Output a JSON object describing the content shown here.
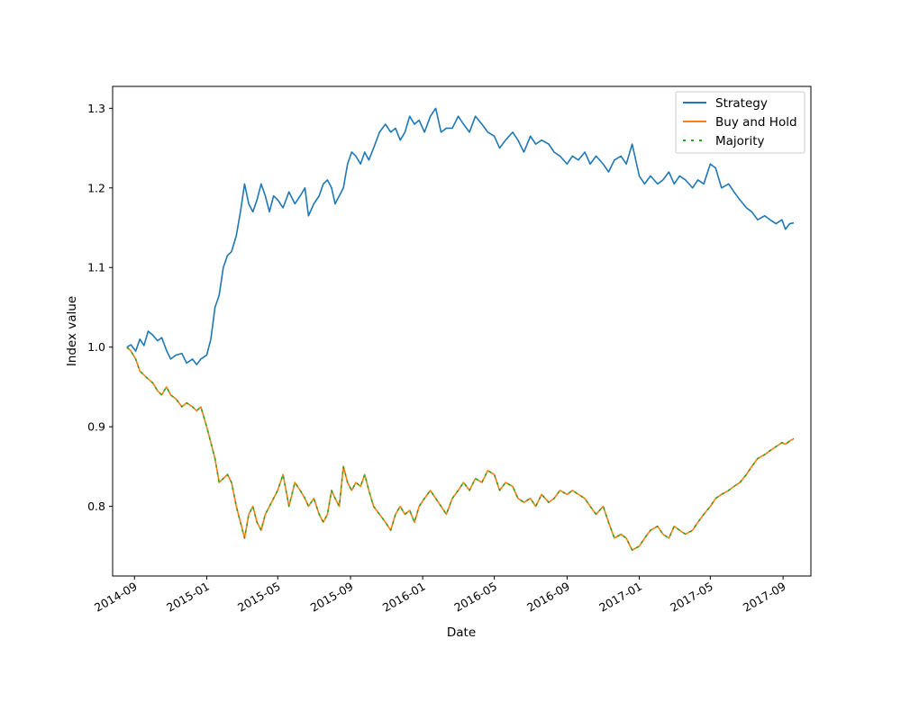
{
  "chart_data": {
    "type": "line",
    "title": "",
    "xlabel": "Date",
    "ylabel": "Index value",
    "x_range": [
      "2014-07-26",
      "2017-10-18"
    ],
    "ylim": [
      0.7125,
      1.3275
    ],
    "yticks": [
      0.8,
      0.9,
      1.0,
      1.1,
      1.2,
      1.3
    ],
    "ytick_labels": [
      "0.8",
      "0.9",
      "1.0",
      "1.1",
      "1.2",
      "1.3"
    ],
    "xticks": [
      "2014-09-01",
      "2015-01-01",
      "2015-05-01",
      "2015-09-01",
      "2016-01-01",
      "2016-05-01",
      "2016-09-01",
      "2017-01-01",
      "2017-05-01",
      "2017-09-01"
    ],
    "xtick_labels": [
      "2014-09",
      "2015-01",
      "2015-05",
      "2015-09",
      "2016-01",
      "2016-05",
      "2016-09",
      "2017-01",
      "2017-05",
      "2017-09"
    ],
    "grid": false,
    "legend_position": "top-right",
    "series": [
      {
        "name": "Strategy",
        "color": "#1f77b4",
        "style": "solid",
        "points": [
          [
            "2014-08-19",
            1.0
          ],
          [
            "2014-08-26",
            1.003
          ],
          [
            "2014-09-03",
            0.995
          ],
          [
            "2014-09-10",
            1.01
          ],
          [
            "2014-09-17",
            1.002
          ],
          [
            "2014-09-24",
            1.02
          ],
          [
            "2014-10-02",
            1.015
          ],
          [
            "2014-10-10",
            1.008
          ],
          [
            "2014-10-17",
            1.012
          ],
          [
            "2014-10-25",
            0.996
          ],
          [
            "2014-11-01",
            0.985
          ],
          [
            "2014-11-10",
            0.99
          ],
          [
            "2014-11-20",
            0.992
          ],
          [
            "2014-11-28",
            0.98
          ],
          [
            "2014-12-08",
            0.985
          ],
          [
            "2014-12-15",
            0.978
          ],
          [
            "2014-12-22",
            0.985
          ],
          [
            "2015-01-01",
            0.99
          ],
          [
            "2015-01-08",
            1.01
          ],
          [
            "2015-01-15",
            1.05
          ],
          [
            "2015-01-22",
            1.065
          ],
          [
            "2015-01-29",
            1.1
          ],
          [
            "2015-02-05",
            1.115
          ],
          [
            "2015-02-12",
            1.12
          ],
          [
            "2015-02-20",
            1.14
          ],
          [
            "2015-02-27",
            1.17
          ],
          [
            "2015-03-06",
            1.205
          ],
          [
            "2015-03-13",
            1.18
          ],
          [
            "2015-03-20",
            1.17
          ],
          [
            "2015-03-27",
            1.185
          ],
          [
            "2015-04-03",
            1.205
          ],
          [
            "2015-04-10",
            1.19
          ],
          [
            "2015-04-17",
            1.17
          ],
          [
            "2015-04-24",
            1.19
          ],
          [
            "2015-05-01",
            1.185
          ],
          [
            "2015-05-10",
            1.175
          ],
          [
            "2015-05-20",
            1.195
          ],
          [
            "2015-05-30",
            1.18
          ],
          [
            "2015-06-08",
            1.19
          ],
          [
            "2015-06-16",
            1.2
          ],
          [
            "2015-06-22",
            1.165
          ],
          [
            "2015-07-01",
            1.18
          ],
          [
            "2015-07-10",
            1.19
          ],
          [
            "2015-07-17",
            1.205
          ],
          [
            "2015-07-24",
            1.21
          ],
          [
            "2015-07-31",
            1.2
          ],
          [
            "2015-08-06",
            1.18
          ],
          [
            "2015-08-13",
            1.19
          ],
          [
            "2015-08-20",
            1.2
          ],
          [
            "2015-08-27",
            1.23
          ],
          [
            "2015-09-03",
            1.245
          ],
          [
            "2015-09-10",
            1.24
          ],
          [
            "2015-09-18",
            1.23
          ],
          [
            "2015-09-25",
            1.245
          ],
          [
            "2015-10-02",
            1.235
          ],
          [
            "2015-10-10",
            1.25
          ],
          [
            "2015-10-20",
            1.27
          ],
          [
            "2015-10-30",
            1.28
          ],
          [
            "2015-11-08",
            1.27
          ],
          [
            "2015-11-16",
            1.275
          ],
          [
            "2015-11-24",
            1.26
          ],
          [
            "2015-12-02",
            1.27
          ],
          [
            "2015-12-10",
            1.29
          ],
          [
            "2015-12-18",
            1.28
          ],
          [
            "2015-12-26",
            1.285
          ],
          [
            "2016-01-04",
            1.27
          ],
          [
            "2016-01-14",
            1.29
          ],
          [
            "2016-01-23",
            1.3
          ],
          [
            "2016-02-01",
            1.27
          ],
          [
            "2016-02-10",
            1.275
          ],
          [
            "2016-02-20",
            1.275
          ],
          [
            "2016-03-01",
            1.29
          ],
          [
            "2016-03-10",
            1.28
          ],
          [
            "2016-03-20",
            1.27
          ],
          [
            "2016-03-30",
            1.29
          ],
          [
            "2016-04-10",
            1.28
          ],
          [
            "2016-04-20",
            1.27
          ],
          [
            "2016-05-01",
            1.265
          ],
          [
            "2016-05-10",
            1.25
          ],
          [
            "2016-05-20",
            1.26
          ],
          [
            "2016-06-01",
            1.27
          ],
          [
            "2016-06-10",
            1.26
          ],
          [
            "2016-06-20",
            1.245
          ],
          [
            "2016-07-01",
            1.265
          ],
          [
            "2016-07-10",
            1.255
          ],
          [
            "2016-07-20",
            1.26
          ],
          [
            "2016-08-01",
            1.255
          ],
          [
            "2016-08-10",
            1.245
          ],
          [
            "2016-08-20",
            1.24
          ],
          [
            "2016-09-01",
            1.23
          ],
          [
            "2016-09-10",
            1.24
          ],
          [
            "2016-09-20",
            1.235
          ],
          [
            "2016-10-01",
            1.245
          ],
          [
            "2016-10-10",
            1.23
          ],
          [
            "2016-10-20",
            1.24
          ],
          [
            "2016-11-01",
            1.23
          ],
          [
            "2016-11-10",
            1.22
          ],
          [
            "2016-11-20",
            1.235
          ],
          [
            "2016-12-01",
            1.24
          ],
          [
            "2016-12-10",
            1.23
          ],
          [
            "2016-12-20",
            1.255
          ],
          [
            "2017-01-01",
            1.215
          ],
          [
            "2017-01-10",
            1.205
          ],
          [
            "2017-01-20",
            1.215
          ],
          [
            "2017-02-01",
            1.205
          ],
          [
            "2017-02-10",
            1.21
          ],
          [
            "2017-02-20",
            1.22
          ],
          [
            "2017-03-01",
            1.205
          ],
          [
            "2017-03-10",
            1.215
          ],
          [
            "2017-03-20",
            1.21
          ],
          [
            "2017-04-01",
            1.2
          ],
          [
            "2017-04-10",
            1.21
          ],
          [
            "2017-04-20",
            1.205
          ],
          [
            "2017-05-01",
            1.23
          ],
          [
            "2017-05-10",
            1.225
          ],
          [
            "2017-05-20",
            1.2
          ],
          [
            "2017-06-01",
            1.205
          ],
          [
            "2017-06-10",
            1.195
          ],
          [
            "2017-06-20",
            1.185
          ],
          [
            "2017-07-01",
            1.175
          ],
          [
            "2017-07-10",
            1.17
          ],
          [
            "2017-07-20",
            1.16
          ],
          [
            "2017-08-01",
            1.165
          ],
          [
            "2017-08-10",
            1.16
          ],
          [
            "2017-08-20",
            1.155
          ],
          [
            "2017-08-30",
            1.16
          ],
          [
            "2017-09-05",
            1.148
          ],
          [
            "2017-09-12",
            1.155
          ],
          [
            "2017-09-19",
            1.156
          ]
        ]
      },
      {
        "name": "Buy and Hold",
        "color": "#ff7f0e",
        "style": "solid",
        "points": [
          [
            "2014-08-19",
            1.0
          ],
          [
            "2014-08-26",
            0.995
          ],
          [
            "2014-09-03",
            0.985
          ],
          [
            "2014-09-10",
            0.97
          ],
          [
            "2014-09-17",
            0.965
          ],
          [
            "2014-09-24",
            0.96
          ],
          [
            "2014-10-02",
            0.955
          ],
          [
            "2014-10-10",
            0.945
          ],
          [
            "2014-10-17",
            0.94
          ],
          [
            "2014-10-25",
            0.95
          ],
          [
            "2014-11-01",
            0.94
          ],
          [
            "2014-11-10",
            0.935
          ],
          [
            "2014-11-20",
            0.925
          ],
          [
            "2014-11-28",
            0.93
          ],
          [
            "2014-12-08",
            0.925
          ],
          [
            "2014-12-15",
            0.92
          ],
          [
            "2014-12-22",
            0.925
          ],
          [
            "2015-01-01",
            0.9
          ],
          [
            "2015-01-08",
            0.88
          ],
          [
            "2015-01-15",
            0.86
          ],
          [
            "2015-01-22",
            0.83
          ],
          [
            "2015-01-29",
            0.835
          ],
          [
            "2015-02-05",
            0.84
          ],
          [
            "2015-02-12",
            0.83
          ],
          [
            "2015-02-20",
            0.8
          ],
          [
            "2015-02-27",
            0.78
          ],
          [
            "2015-03-06",
            0.76
          ],
          [
            "2015-03-13",
            0.79
          ],
          [
            "2015-03-20",
            0.8
          ],
          [
            "2015-03-27",
            0.78
          ],
          [
            "2015-04-03",
            0.77
          ],
          [
            "2015-04-10",
            0.79
          ],
          [
            "2015-04-17",
            0.8
          ],
          [
            "2015-04-24",
            0.81
          ],
          [
            "2015-05-01",
            0.82
          ],
          [
            "2015-05-10",
            0.84
          ],
          [
            "2015-05-20",
            0.8
          ],
          [
            "2015-05-30",
            0.83
          ],
          [
            "2015-06-08",
            0.82
          ],
          [
            "2015-06-16",
            0.81
          ],
          [
            "2015-06-22",
            0.8
          ],
          [
            "2015-07-01",
            0.81
          ],
          [
            "2015-07-10",
            0.79
          ],
          [
            "2015-07-17",
            0.78
          ],
          [
            "2015-07-24",
            0.79
          ],
          [
            "2015-07-31",
            0.82
          ],
          [
            "2015-08-06",
            0.81
          ],
          [
            "2015-08-13",
            0.8
          ],
          [
            "2015-08-20",
            0.85
          ],
          [
            "2015-08-27",
            0.83
          ],
          [
            "2015-09-03",
            0.82
          ],
          [
            "2015-09-10",
            0.83
          ],
          [
            "2015-09-18",
            0.825
          ],
          [
            "2015-09-25",
            0.84
          ],
          [
            "2015-10-02",
            0.82
          ],
          [
            "2015-10-10",
            0.8
          ],
          [
            "2015-10-20",
            0.79
          ],
          [
            "2015-10-30",
            0.78
          ],
          [
            "2015-11-08",
            0.77
          ],
          [
            "2015-11-16",
            0.79
          ],
          [
            "2015-11-24",
            0.8
          ],
          [
            "2015-12-02",
            0.79
          ],
          [
            "2015-12-10",
            0.795
          ],
          [
            "2015-12-18",
            0.78
          ],
          [
            "2015-12-26",
            0.8
          ],
          [
            "2016-01-04",
            0.81
          ],
          [
            "2016-01-14",
            0.82
          ],
          [
            "2016-01-23",
            0.81
          ],
          [
            "2016-02-01",
            0.8
          ],
          [
            "2016-02-10",
            0.79
          ],
          [
            "2016-02-20",
            0.81
          ],
          [
            "2016-03-01",
            0.82
          ],
          [
            "2016-03-10",
            0.83
          ],
          [
            "2016-03-20",
            0.82
          ],
          [
            "2016-03-30",
            0.835
          ],
          [
            "2016-04-10",
            0.83
          ],
          [
            "2016-04-20",
            0.845
          ],
          [
            "2016-05-01",
            0.84
          ],
          [
            "2016-05-10",
            0.82
          ],
          [
            "2016-05-20",
            0.83
          ],
          [
            "2016-06-01",
            0.825
          ],
          [
            "2016-06-10",
            0.81
          ],
          [
            "2016-06-20",
            0.805
          ],
          [
            "2016-07-01",
            0.81
          ],
          [
            "2016-07-10",
            0.8
          ],
          [
            "2016-07-20",
            0.815
          ],
          [
            "2016-08-01",
            0.805
          ],
          [
            "2016-08-10",
            0.81
          ],
          [
            "2016-08-20",
            0.82
          ],
          [
            "2016-09-01",
            0.815
          ],
          [
            "2016-09-10",
            0.82
          ],
          [
            "2016-09-20",
            0.815
          ],
          [
            "2016-10-01",
            0.81
          ],
          [
            "2016-10-10",
            0.8
          ],
          [
            "2016-10-20",
            0.79
          ],
          [
            "2016-11-01",
            0.8
          ],
          [
            "2016-11-10",
            0.78
          ],
          [
            "2016-11-20",
            0.76
          ],
          [
            "2016-12-01",
            0.765
          ],
          [
            "2016-12-10",
            0.76
          ],
          [
            "2016-12-20",
            0.745
          ],
          [
            "2017-01-01",
            0.75
          ],
          [
            "2017-01-10",
            0.76
          ],
          [
            "2017-01-20",
            0.77
          ],
          [
            "2017-02-01",
            0.775
          ],
          [
            "2017-02-10",
            0.765
          ],
          [
            "2017-02-20",
            0.76
          ],
          [
            "2017-03-01",
            0.775
          ],
          [
            "2017-03-10",
            0.77
          ],
          [
            "2017-03-20",
            0.765
          ],
          [
            "2017-04-01",
            0.77
          ],
          [
            "2017-04-10",
            0.78
          ],
          [
            "2017-04-20",
            0.79
          ],
          [
            "2017-05-01",
            0.8
          ],
          [
            "2017-05-10",
            0.81
          ],
          [
            "2017-05-20",
            0.815
          ],
          [
            "2017-06-01",
            0.82
          ],
          [
            "2017-06-10",
            0.825
          ],
          [
            "2017-06-20",
            0.83
          ],
          [
            "2017-07-01",
            0.84
          ],
          [
            "2017-07-10",
            0.85
          ],
          [
            "2017-07-20",
            0.86
          ],
          [
            "2017-08-01",
            0.865
          ],
          [
            "2017-08-10",
            0.87
          ],
          [
            "2017-08-20",
            0.875
          ],
          [
            "2017-08-30",
            0.88
          ],
          [
            "2017-09-05",
            0.878
          ],
          [
            "2017-09-12",
            0.882
          ],
          [
            "2017-09-19",
            0.885
          ]
        ]
      },
      {
        "name": "Majority",
        "color": "#2ca02c",
        "style": "dashed",
        "same_values_as": "Buy and Hold"
      }
    ]
  }
}
